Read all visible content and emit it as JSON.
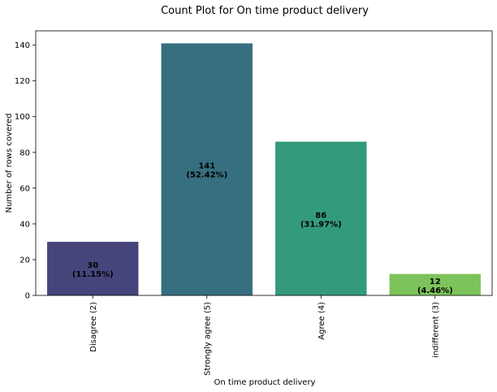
{
  "chart_data": {
    "type": "bar",
    "title": "Count Plot for On time product delivery",
    "xlabel": "On time product delivery",
    "ylabel": "Number of rows covered",
    "categories": [
      "Disagree (2)",
      "Strongly agree (5)",
      "Agree (4)",
      "indifferent  (3)"
    ],
    "values": [
      30,
      141,
      86,
      12
    ],
    "percent_labels": [
      "(11.15%)",
      "(52.42%)",
      "(31.97%)",
      "(4.46%)"
    ],
    "colors": [
      "#45457c",
      "#366f80",
      "#339a7b",
      "#7dc35b"
    ],
    "ylim": [
      0,
      148
    ],
    "yticks": [
      0,
      20,
      40,
      60,
      80,
      100,
      120,
      140
    ],
    "grid": false,
    "legend": "none"
  }
}
